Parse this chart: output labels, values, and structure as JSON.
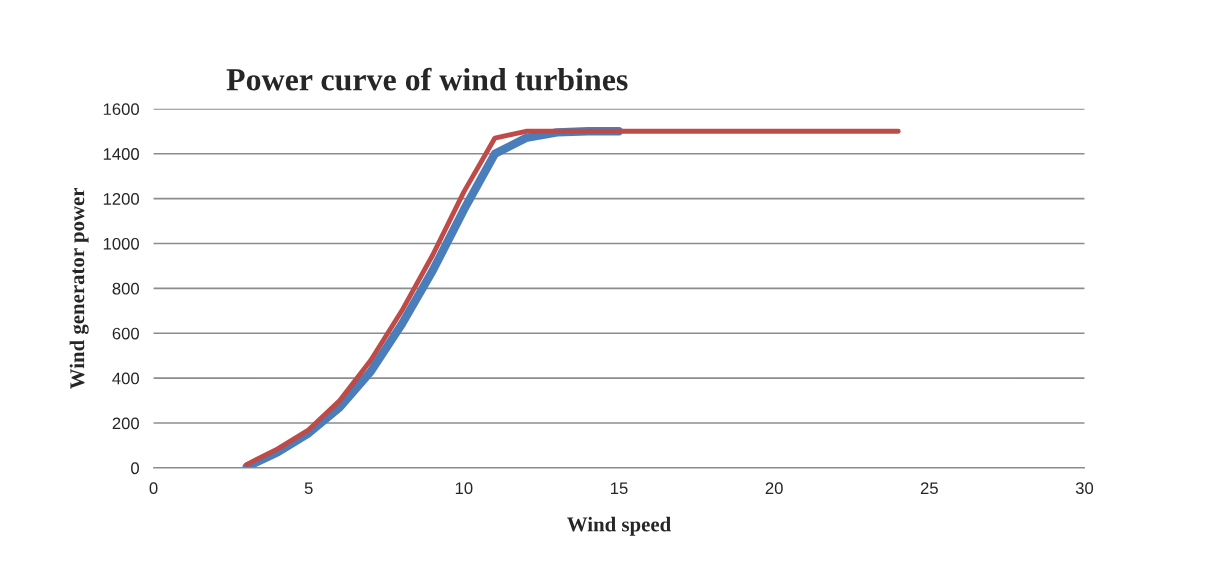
{
  "chart_data": {
    "type": "line",
    "title": "Power curve of wind turbines",
    "xlabel": "Wind speed",
    "ylabel": "Wind generator power",
    "x": [
      3,
      4,
      5,
      6,
      7,
      8,
      9,
      10,
      11,
      12,
      13,
      14,
      15,
      16,
      17,
      18,
      19,
      20,
      21,
      22,
      23,
      24
    ],
    "series": [
      {
        "color": "#4a7ebb",
        "values": [
          5,
          70,
          155,
          270,
          430,
          640,
          880,
          1150,
          1400,
          1470,
          1495,
          1500,
          1500,
          null,
          null,
          null,
          null,
          null,
          null,
          null,
          null,
          null
        ]
      },
      {
        "color": "#be4b48",
        "values": [
          15,
          85,
          170,
          300,
          480,
          700,
          950,
          1230,
          1470,
          1500,
          1500,
          1500,
          1500,
          1500,
          1500,
          1500,
          1500,
          1500,
          1500,
          1500,
          1500,
          1500
        ]
      }
    ],
    "xlim": [
      0,
      30
    ],
    "xticks": [
      0,
      5,
      10,
      15,
      20,
      25,
      30
    ],
    "ylim": [
      0,
      1600
    ],
    "yticks": [
      0,
      200,
      400,
      600,
      800,
      1000,
      1200,
      1400,
      1600
    ],
    "grid": "y",
    "legend": false,
    "marker": "none",
    "line_style": "solid"
  }
}
